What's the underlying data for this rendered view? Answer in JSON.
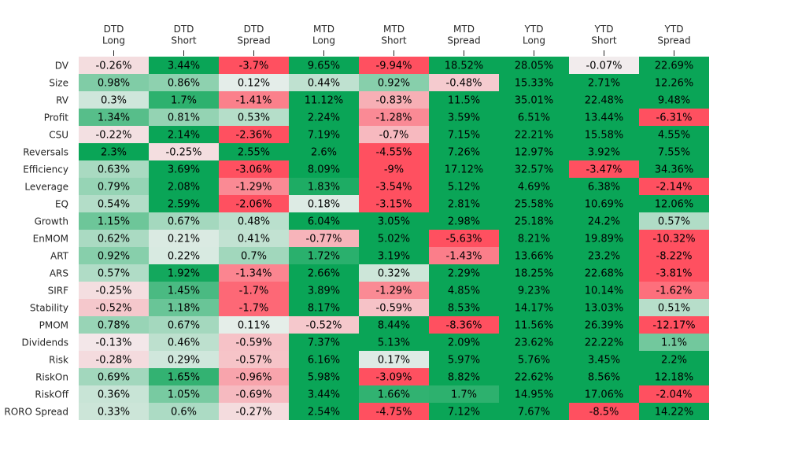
{
  "chart_data": {
    "type": "heatmap",
    "columns": [
      [
        "DTD",
        "Long"
      ],
      [
        "DTD",
        "Short"
      ],
      [
        "DTD",
        "Spread"
      ],
      [
        "MTD",
        "Long"
      ],
      [
        "MTD",
        "Short"
      ],
      [
        "MTD",
        "Spread"
      ],
      [
        "YTD",
        "Long"
      ],
      [
        "YTD",
        "Short"
      ],
      [
        "YTD",
        "Spread"
      ]
    ],
    "rows": [
      "DV",
      "Size",
      "RV",
      "Profit",
      "CSU",
      "Reversals",
      "Efficiency",
      "Leverage",
      "EQ",
      "Growth",
      "EnMOM",
      "ART",
      "ARS",
      "SIRF",
      "Stability",
      "PMOM",
      "Dividends",
      "Risk",
      "RiskOn",
      "RiskOff",
      "RORO Spread"
    ],
    "values": [
      [
        -0.26,
        3.44,
        -3.7,
        9.65,
        -9.94,
        18.52,
        28.05,
        -0.07,
        22.69
      ],
      [
        0.98,
        0.86,
        0.12,
        0.44,
        0.92,
        -0.48,
        15.33,
        2.71,
        12.26
      ],
      [
        0.3,
        1.7,
        -1.41,
        11.12,
        -0.83,
        11.5,
        35.01,
        22.48,
        9.48
      ],
      [
        1.34,
        0.81,
        0.53,
        2.24,
        -1.28,
        3.59,
        6.51,
        13.44,
        -6.31
      ],
      [
        -0.22,
        2.14,
        -2.36,
        7.19,
        -0.7,
        7.15,
        22.21,
        15.58,
        4.55
      ],
      [
        2.3,
        -0.25,
        2.55,
        2.6,
        -4.55,
        7.26,
        12.97,
        3.92,
        7.55
      ],
      [
        0.63,
        3.69,
        -3.06,
        8.09,
        -9.0,
        17.12,
        32.57,
        -3.47,
        34.36
      ],
      [
        0.79,
        2.08,
        -1.29,
        1.83,
        -3.54,
        5.12,
        4.69,
        6.38,
        -2.14
      ],
      [
        0.54,
        2.59,
        -2.06,
        0.18,
        -3.15,
        2.81,
        25.58,
        10.69,
        12.06
      ],
      [
        1.15,
        0.67,
        0.48,
        6.04,
        3.05,
        2.98,
        25.18,
        24.2,
        0.57
      ],
      [
        0.62,
        0.21,
        0.41,
        -0.77,
        5.02,
        -5.63,
        8.21,
        19.89,
        -10.32
      ],
      [
        0.92,
        0.22,
        0.7,
        1.72,
        3.19,
        -1.43,
        13.66,
        23.2,
        -8.22
      ],
      [
        0.57,
        1.92,
        -1.34,
        2.66,
        0.32,
        2.29,
        18.25,
        22.68,
        -3.81
      ],
      [
        -0.25,
        1.45,
        -1.7,
        3.89,
        -1.29,
        4.85,
        9.23,
        10.14,
        -1.62
      ],
      [
        -0.52,
        1.18,
        -1.7,
        8.17,
        -0.59,
        8.53,
        14.17,
        13.03,
        0.51
      ],
      [
        0.78,
        0.67,
        0.11,
        -0.52,
        8.44,
        -8.36,
        11.56,
        26.39,
        -12.17
      ],
      [
        -0.13,
        0.46,
        -0.59,
        7.37,
        5.13,
        2.09,
        23.62,
        22.22,
        1.1
      ],
      [
        -0.28,
        0.29,
        -0.57,
        6.16,
        0.17,
        5.97,
        5.76,
        3.45,
        2.2
      ],
      [
        0.69,
        1.65,
        -0.96,
        5.98,
        -3.09,
        8.82,
        22.62,
        8.56,
        12.18
      ],
      [
        0.36,
        1.05,
        -0.69,
        3.44,
        1.66,
        1.7,
        14.95,
        17.06,
        -2.04
      ],
      [
        0.33,
        0.6,
        -0.27,
        2.54,
        -4.75,
        7.12,
        7.67,
        -8.5,
        14.22
      ]
    ],
    "value_suffix": "%",
    "color_scale": {
      "negative": "#ff5060",
      "neutral": "#f2f2f2",
      "positive": "#0aa557",
      "saturation_value": 2.0
    },
    "grid": false
  }
}
